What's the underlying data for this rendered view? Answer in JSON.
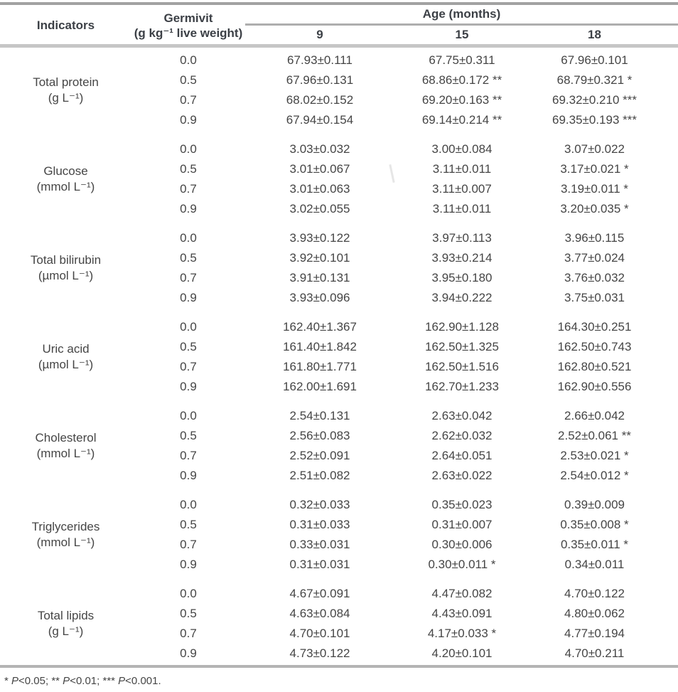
{
  "header": {
    "indicators": "Indicators",
    "germivit_line1": "Germivit",
    "germivit_line2": "(g kg⁻¹ live weight)",
    "age_label": "Age (months)",
    "age_columns": [
      "9",
      "15",
      "18"
    ]
  },
  "groups": [
    {
      "indicator": "Total protein",
      "unit": "(g L⁻¹)",
      "rows": [
        {
          "dose": "0.0",
          "values": [
            "67.93±0.111",
            "67.75±0.311",
            "67.96±0.101"
          ]
        },
        {
          "dose": "0.5",
          "values": [
            "67.96±0.131",
            "68.86±0.172 **",
            "68.79±0.321 *"
          ]
        },
        {
          "dose": "0.7",
          "values": [
            "68.02±0.152",
            "69.20±0.163 **",
            "69.32±0.210 ***"
          ]
        },
        {
          "dose": "0.9",
          "values": [
            "67.94±0.154",
            "69.14±0.214 **",
            "69.35±0.193 ***"
          ]
        }
      ]
    },
    {
      "indicator": "Glucose",
      "unit": "(mmol L⁻¹)",
      "rows": [
        {
          "dose": "0.0",
          "values": [
            "3.03±0.032",
            "3.00±0.084",
            "3.07±0.022"
          ]
        },
        {
          "dose": "0.5",
          "values": [
            "3.01±0.067",
            "3.11±0.011",
            "3.17±0.021 *"
          ]
        },
        {
          "dose": "0.7",
          "values": [
            "3.01±0.063",
            "3.11±0.007",
            "3.19±0.011 *"
          ]
        },
        {
          "dose": "0.9",
          "values": [
            "3.02±0.055",
            "3.11±0.011",
            "3.20±0.035 *"
          ]
        }
      ]
    },
    {
      "indicator": "Total bilirubin",
      "unit": "(µmol L⁻¹)",
      "rows": [
        {
          "dose": "0.0",
          "values": [
            "3.93±0.122",
            "3.97±0.113",
            "3.96±0.115"
          ]
        },
        {
          "dose": "0.5",
          "values": [
            "3.92±0.101",
            "3.93±0.214",
            "3.77±0.024"
          ]
        },
        {
          "dose": "0.7",
          "values": [
            "3.91±0.131",
            "3.95±0.180",
            "3.76±0.032"
          ]
        },
        {
          "dose": "0.9",
          "values": [
            "3.93±0.096",
            "3.94±0.222",
            "3.75±0.031"
          ]
        }
      ]
    },
    {
      "indicator": "Uric acid",
      "unit": "(µmol L⁻¹)",
      "rows": [
        {
          "dose": "0.0",
          "values": [
            "162.40±1.367",
            "162.90±1.128",
            "164.30±0.251"
          ]
        },
        {
          "dose": "0.5",
          "values": [
            "161.40±1.842",
            "162.50±1.325",
            "162.50±0.743"
          ]
        },
        {
          "dose": "0.7",
          "values": [
            "161.80±1.771",
            "162.50±1.516",
            "162.80±0.521"
          ]
        },
        {
          "dose": "0.9",
          "values": [
            "162.00±1.691",
            "162.70±1.233",
            "162.90±0.556"
          ]
        }
      ]
    },
    {
      "indicator": "Cholesterol",
      "unit": "(mmol L⁻¹)",
      "rows": [
        {
          "dose": "0.0",
          "values": [
            "2.54±0.131",
            "2.63±0.042",
            "2.66±0.042"
          ]
        },
        {
          "dose": "0.5",
          "values": [
            "2.56±0.083",
            "2.62±0.032",
            "2.52±0.061 **"
          ]
        },
        {
          "dose": "0.7",
          "values": [
            "2.52±0.091",
            "2.64±0.051",
            "2.53±0.021 *"
          ]
        },
        {
          "dose": "0.9",
          "values": [
            "2.51±0.082",
            "2.63±0.022",
            "2.54±0.012 *"
          ]
        }
      ]
    },
    {
      "indicator": "Triglycerides",
      "unit": "(mmol L⁻¹)",
      "rows": [
        {
          "dose": "0.0",
          "values": [
            "0.32±0.033",
            "0.35±0.023",
            "0.39±0.009"
          ]
        },
        {
          "dose": "0.5",
          "values": [
            "0.31±0.033",
            "0.31±0.007",
            "0.35±0.008 *"
          ]
        },
        {
          "dose": "0.7",
          "values": [
            "0.33±0.031",
            "0.30±0.006",
            "0.35±0.011 *"
          ]
        },
        {
          "dose": "0.9",
          "values": [
            "0.31±0.031",
            "0.30±0.011 *",
            "0.34±0.011"
          ]
        }
      ]
    },
    {
      "indicator": "Total lipids",
      "unit": "(g L⁻¹)",
      "rows": [
        {
          "dose": "0.0",
          "values": [
            "4.67±0.091",
            "4.47±0.082",
            "4.70±0.122"
          ]
        },
        {
          "dose": "0.5",
          "values": [
            "4.63±0.084",
            "4.43±0.091",
            "4.80±0.062"
          ]
        },
        {
          "dose": "0.7",
          "values": [
            "4.70±0.101",
            "4.17±0.033 *",
            "4.77±0.194"
          ]
        },
        {
          "dose": "0.9",
          "values": [
            "4.73±0.122",
            "4.20±0.101",
            "4.70±0.211"
          ]
        }
      ]
    }
  ],
  "footnote": {
    "parts": [
      "* ",
      "P",
      "<0.05; ** ",
      "P",
      "<0.01; *** ",
      "P",
      "<0.001."
    ]
  }
}
